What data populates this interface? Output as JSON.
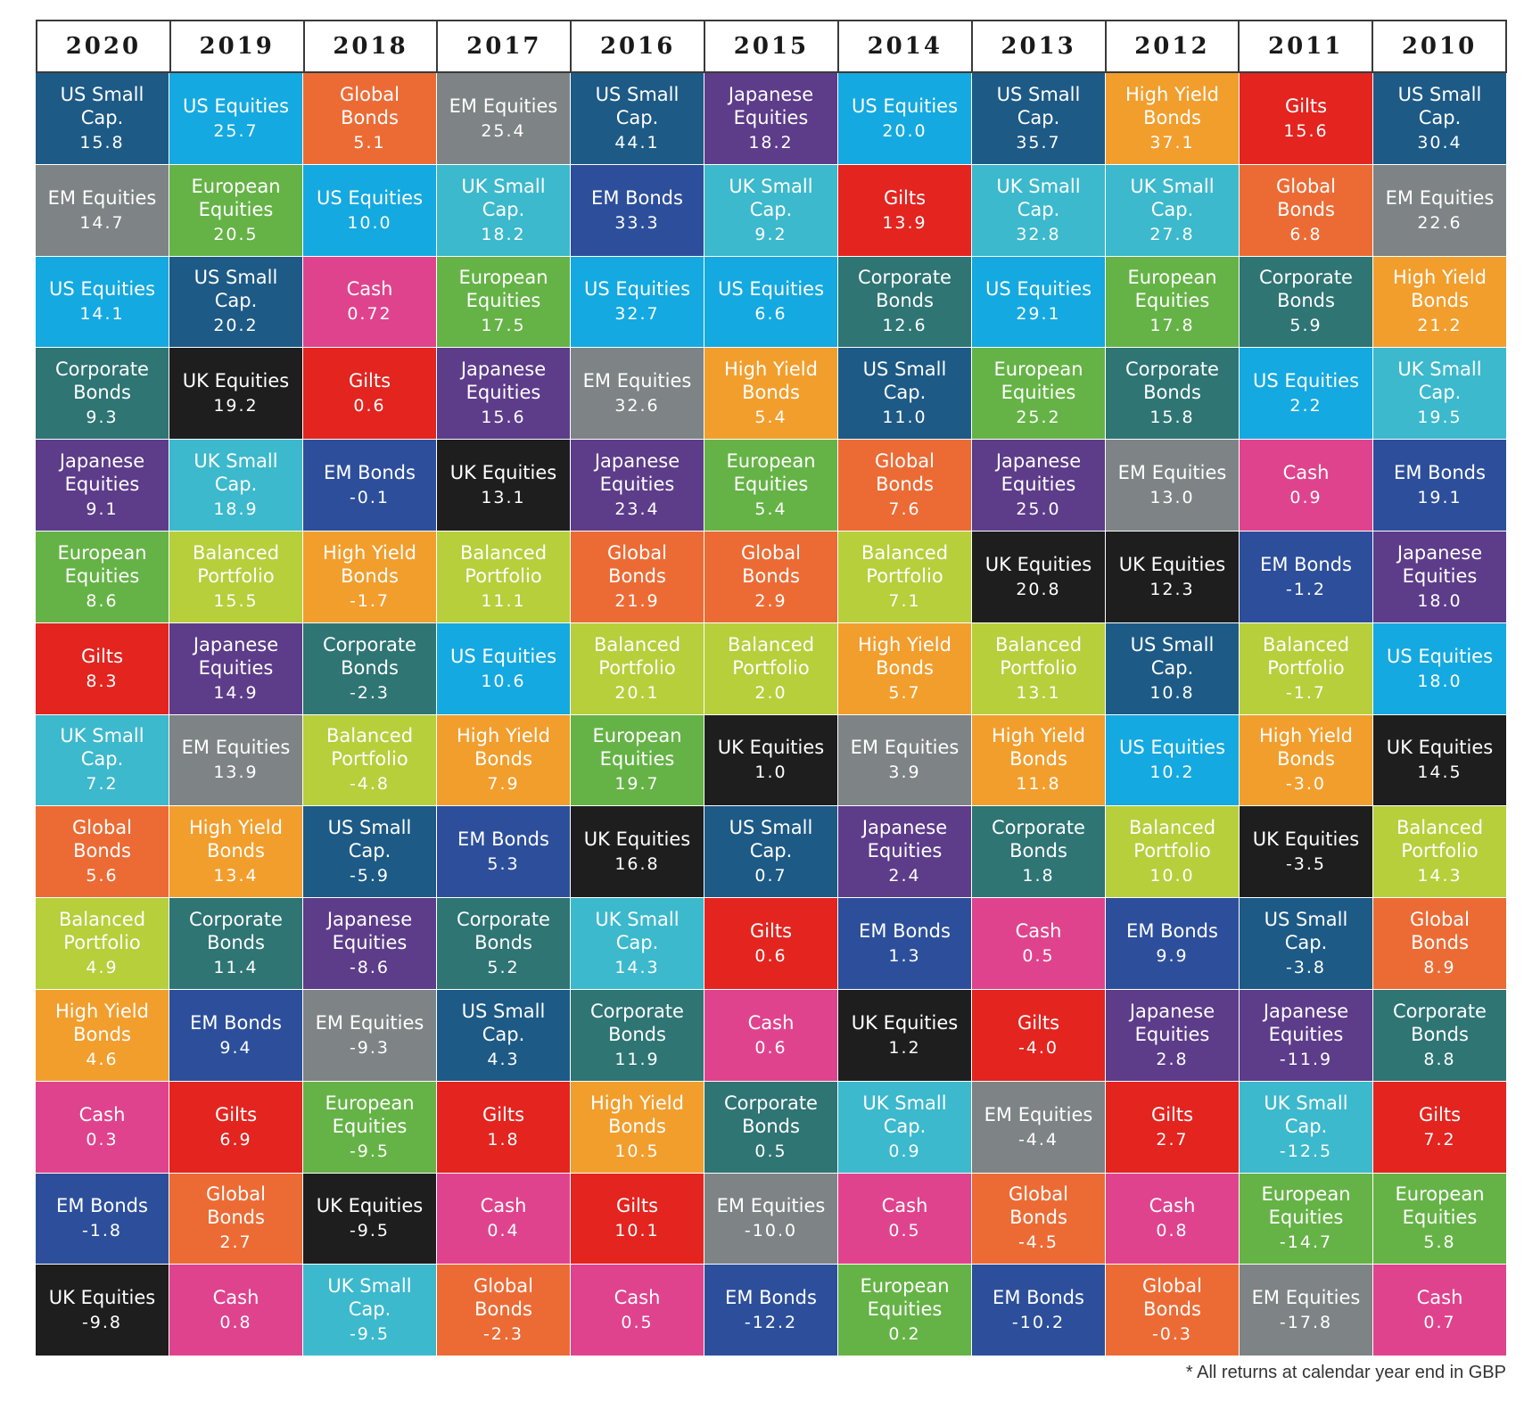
{
  "chart_data": {
    "type": "table",
    "years": [
      "2020",
      "2019",
      "2018",
      "2017",
      "2016",
      "2015",
      "2014",
      "2013",
      "2012",
      "2011",
      "2010"
    ],
    "asset_colors": {
      "US Small Cap.": "#1d5a86",
      "EM Equities": "#7e8385",
      "US Equities": "#14a9e0",
      "Corporate Bonds": "#2e7574",
      "Japanese Equities": "#5d3c8a",
      "European Equities": "#65b346",
      "Gilts": "#e3241f",
      "UK Small Cap.": "#3cb9cc",
      "Global Bonds": "#ec6b35",
      "Balanced Portfolio": "#b6cf3b",
      "High Yield Bonds": "#f29e2d",
      "Cash": "#e0438d",
      "EM Bonds": "#2d4f9b",
      "UK Equities": "#1e1e1e"
    },
    "columns": [
      {
        "year": "2020",
        "cells": [
          {
            "name": "US Small Cap.",
            "value": "15.8"
          },
          {
            "name": "EM Equities",
            "value": "14.7"
          },
          {
            "name": "US Equities",
            "value": "14.1"
          },
          {
            "name": "Corporate Bonds",
            "value": "9.3"
          },
          {
            "name": "Japanese Equities",
            "value": "9.1"
          },
          {
            "name": "European Equities",
            "value": "8.6"
          },
          {
            "name": "Gilts",
            "value": "8.3"
          },
          {
            "name": "UK Small Cap.",
            "value": "7.2"
          },
          {
            "name": "Global Bonds",
            "value": "5.6"
          },
          {
            "name": "Balanced Portfolio",
            "value": "4.9"
          },
          {
            "name": "High Yield Bonds",
            "value": "4.6"
          },
          {
            "name": "Cash",
            "value": "0.3"
          },
          {
            "name": "EM Bonds",
            "value": "-1.8"
          },
          {
            "name": "UK Equities",
            "value": "-9.8"
          }
        ]
      },
      {
        "year": "2019",
        "cells": [
          {
            "name": "US Equities",
            "value": "25.7"
          },
          {
            "name": "European Equities",
            "value": "20.5"
          },
          {
            "name": "US Small Cap.",
            "value": "20.2"
          },
          {
            "name": "UK Equities",
            "value": "19.2"
          },
          {
            "name": "UK Small Cap.",
            "value": "18.9"
          },
          {
            "name": "Balanced Portfolio",
            "value": "15.5"
          },
          {
            "name": "Japanese Equities",
            "value": "14.9"
          },
          {
            "name": "EM Equities",
            "value": "13.9"
          },
          {
            "name": "High Yield Bonds",
            "value": "13.4"
          },
          {
            "name": "Corporate Bonds",
            "value": "11.4"
          },
          {
            "name": "EM Bonds",
            "value": "9.4"
          },
          {
            "name": "Gilts",
            "value": "6.9"
          },
          {
            "name": "Global Bonds",
            "value": "2.7"
          },
          {
            "name": "Cash",
            "value": "0.8"
          }
        ]
      },
      {
        "year": "2018",
        "cells": [
          {
            "name": "Global Bonds",
            "value": "5.1"
          },
          {
            "name": "US Equities",
            "value": "10.0"
          },
          {
            "name": "Cash",
            "value": "0.72"
          },
          {
            "name": "Gilts",
            "value": "0.6"
          },
          {
            "name": "EM Bonds",
            "value": "-0.1"
          },
          {
            "name": "High Yield Bonds",
            "value": "-1.7"
          },
          {
            "name": "Corporate Bonds",
            "value": "-2.3"
          },
          {
            "name": "Balanced Portfolio",
            "value": "-4.8"
          },
          {
            "name": "US Small Cap.",
            "value": "-5.9"
          },
          {
            "name": "Japanese Equities",
            "value": "-8.6"
          },
          {
            "name": "EM Equities",
            "value": "-9.3"
          },
          {
            "name": "European Equities",
            "value": "-9.5"
          },
          {
            "name": "UK Equities",
            "value": "-9.5"
          },
          {
            "name": "UK Small Cap.",
            "value": "-9.5"
          }
        ]
      },
      {
        "year": "2017",
        "cells": [
          {
            "name": "EM Equities",
            "value": "25.4"
          },
          {
            "name": "UK Small Cap.",
            "value": "18.2"
          },
          {
            "name": "European Equities",
            "value": "17.5"
          },
          {
            "name": "Japanese Equities",
            "value": "15.6"
          },
          {
            "name": "UK Equities",
            "value": "13.1"
          },
          {
            "name": "Balanced Portfolio",
            "value": "11.1"
          },
          {
            "name": "US Equities",
            "value": "10.6"
          },
          {
            "name": "High Yield Bonds",
            "value": "7.9"
          },
          {
            "name": "EM Bonds",
            "value": "5.3"
          },
          {
            "name": "Corporate Bonds",
            "value": "5.2"
          },
          {
            "name": "US Small Cap.",
            "value": "4.3"
          },
          {
            "name": "Gilts",
            "value": "1.8"
          },
          {
            "name": "Cash",
            "value": "0.4"
          },
          {
            "name": "Global Bonds",
            "value": "-2.3"
          }
        ]
      },
      {
        "year": "2016",
        "cells": [
          {
            "name": "US Small Cap.",
            "value": "44.1"
          },
          {
            "name": "EM Bonds",
            "value": "33.3"
          },
          {
            "name": "US Equities",
            "value": "32.7"
          },
          {
            "name": "EM Equities",
            "value": "32.6"
          },
          {
            "name": "Japanese Equities",
            "value": "23.4"
          },
          {
            "name": "Global Bonds",
            "value": "21.9"
          },
          {
            "name": "Balanced Portfolio",
            "value": "20.1"
          },
          {
            "name": "European Equities",
            "value": "19.7"
          },
          {
            "name": "UK Equities",
            "value": "16.8"
          },
          {
            "name": "UK Small Cap.",
            "value": "14.3"
          },
          {
            "name": "Corporate Bonds",
            "value": "11.9"
          },
          {
            "name": "High Yield Bonds",
            "value": "10.5"
          },
          {
            "name": "Gilts",
            "value": "10.1"
          },
          {
            "name": "Cash",
            "value": "0.5"
          }
        ]
      },
      {
        "year": "2015",
        "cells": [
          {
            "name": "Japanese Equities",
            "value": "18.2"
          },
          {
            "name": "UK Small Cap.",
            "value": "9.2"
          },
          {
            "name": "US Equities",
            "value": "6.6"
          },
          {
            "name": "High Yield Bonds",
            "value": "5.4"
          },
          {
            "name": "European Equities",
            "value": "5.4"
          },
          {
            "name": "Global Bonds",
            "value": "2.9"
          },
          {
            "name": "Balanced Portfolio",
            "value": "2.0"
          },
          {
            "name": "UK Equities",
            "value": "1.0"
          },
          {
            "name": "US Small Cap.",
            "value": "0.7"
          },
          {
            "name": "Gilts",
            "value": "0.6"
          },
          {
            "name": "Cash",
            "value": "0.6"
          },
          {
            "name": "Corporate Bonds",
            "value": "0.5"
          },
          {
            "name": "EM Equities",
            "value": "-10.0"
          },
          {
            "name": "EM Bonds",
            "value": "-12.2"
          }
        ]
      },
      {
        "year": "2014",
        "cells": [
          {
            "name": "US Equities",
            "value": "20.0"
          },
          {
            "name": "Gilts",
            "value": "13.9"
          },
          {
            "name": "Corporate Bonds",
            "value": "12.6"
          },
          {
            "name": "US Small Cap.",
            "value": "11.0"
          },
          {
            "name": "Global Bonds",
            "value": "7.6"
          },
          {
            "name": "Balanced Portfolio",
            "value": "7.1"
          },
          {
            "name": "High Yield Bonds",
            "value": "5.7"
          },
          {
            "name": "EM Equities",
            "value": "3.9"
          },
          {
            "name": "Japanese Equities",
            "value": "2.4"
          },
          {
            "name": "EM Bonds",
            "value": "1.3"
          },
          {
            "name": "UK Equities",
            "value": "1.2"
          },
          {
            "name": "UK Small Cap.",
            "value": "0.9"
          },
          {
            "name": "Cash",
            "value": "0.5"
          },
          {
            "name": "European Equities",
            "value": "0.2"
          }
        ]
      },
      {
        "year": "2013",
        "cells": [
          {
            "name": "US Small Cap.",
            "value": "35.7"
          },
          {
            "name": "UK Small Cap.",
            "value": "32.8"
          },
          {
            "name": "US Equities",
            "value": "29.1"
          },
          {
            "name": "European Equities",
            "value": "25.2"
          },
          {
            "name": "Japanese Equities",
            "value": "25.0"
          },
          {
            "name": "UK Equities",
            "value": "20.8"
          },
          {
            "name": "Balanced Portfolio",
            "value": "13.1"
          },
          {
            "name": "High Yield Bonds",
            "value": "11.8"
          },
          {
            "name": "Corporate Bonds",
            "value": "1.8"
          },
          {
            "name": "Cash",
            "value": "0.5"
          },
          {
            "name": "Gilts",
            "value": "-4.0"
          },
          {
            "name": "EM Equities",
            "value": "-4.4"
          },
          {
            "name": "Global Bonds",
            "value": "-4.5"
          },
          {
            "name": "EM Bonds",
            "value": "-10.2"
          }
        ]
      },
      {
        "year": "2012",
        "cells": [
          {
            "name": "High Yield Bonds",
            "value": "37.1"
          },
          {
            "name": "UK Small Cap.",
            "value": "27.8"
          },
          {
            "name": "European Equities",
            "value": "17.8"
          },
          {
            "name": "Corporate Bonds",
            "value": "15.8"
          },
          {
            "name": "EM Equities",
            "value": "13.0"
          },
          {
            "name": "UK Equities",
            "value": "12.3"
          },
          {
            "name": "US Small Cap.",
            "value": "10.8"
          },
          {
            "name": "US Equities",
            "value": "10.2"
          },
          {
            "name": "Balanced Portfolio",
            "value": "10.0"
          },
          {
            "name": "EM Bonds",
            "value": "9.9"
          },
          {
            "name": "Japanese Equities",
            "value": "2.8"
          },
          {
            "name": "Gilts",
            "value": "2.7"
          },
          {
            "name": "Cash",
            "value": "0.8"
          },
          {
            "name": "Global Bonds",
            "value": "-0.3"
          }
        ]
      },
      {
        "year": "2011",
        "cells": [
          {
            "name": "Gilts",
            "value": "15.6"
          },
          {
            "name": "Global Bonds",
            "value": "6.8"
          },
          {
            "name": "Corporate Bonds",
            "value": "5.9"
          },
          {
            "name": "US Equities",
            "value": "2.2"
          },
          {
            "name": "Cash",
            "value": "0.9"
          },
          {
            "name": "EM Bonds",
            "value": "-1.2"
          },
          {
            "name": "Balanced Portfolio",
            "value": "-1.7"
          },
          {
            "name": "High Yield Bonds",
            "value": "-3.0"
          },
          {
            "name": "UK Equities",
            "value": "-3.5"
          },
          {
            "name": "US Small Cap.",
            "value": "-3.8"
          },
          {
            "name": "Japanese Equities",
            "value": "-11.9"
          },
          {
            "name": "UK Small Cap.",
            "value": "-12.5"
          },
          {
            "name": "European Equities",
            "value": "-14.7"
          },
          {
            "name": "EM Equities",
            "value": "-17.8"
          }
        ]
      },
      {
        "year": "2010",
        "cells": [
          {
            "name": "US Small Cap.",
            "value": "30.4"
          },
          {
            "name": "EM Equities",
            "value": "22.6"
          },
          {
            "name": "High Yield Bonds",
            "value": "21.2"
          },
          {
            "name": "UK Small Cap.",
            "value": "19.5"
          },
          {
            "name": "EM Bonds",
            "value": "19.1"
          },
          {
            "name": "Japanese Equities",
            "value": "18.0"
          },
          {
            "name": "US Equities",
            "value": "18.0"
          },
          {
            "name": "UK Equities",
            "value": "14.5"
          },
          {
            "name": "Balanced Portfolio",
            "value": "14.3"
          },
          {
            "name": "Global Bonds",
            "value": "8.9"
          },
          {
            "name": "Corporate Bonds",
            "value": "8.8"
          },
          {
            "name": "Gilts",
            "value": "7.2"
          },
          {
            "name": "European Equities",
            "value": "5.8"
          },
          {
            "name": "Cash",
            "value": "0.7"
          }
        ]
      }
    ]
  },
  "footnote": "* All returns at calendar year end in GBP"
}
